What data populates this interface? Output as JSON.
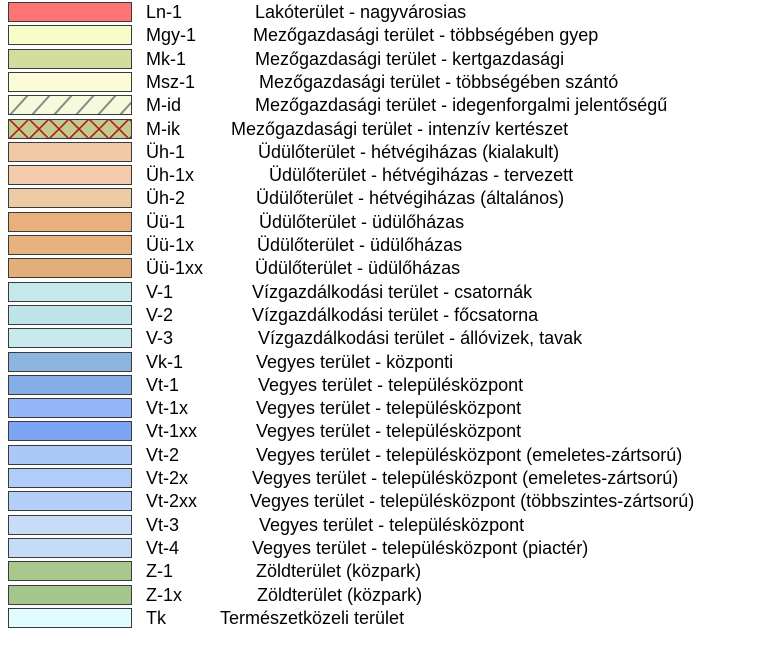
{
  "legend": {
    "rows": [
      {
        "code": "Ln-1",
        "label": "Lakóterület - nagyvárosias",
        "color": "#ff7373",
        "pattern": "none"
      },
      {
        "code": "Mgy-1",
        "label": "Mezőgazdasági terület - többségében gyep",
        "color": "#f8fcc8",
        "pattern": "none"
      },
      {
        "code": "Mk-1",
        "label": "Mezőgazdasági terület - kertgazdasági",
        "color": "#d2dda0",
        "pattern": "none"
      },
      {
        "code": "Msz-1",
        "label": "Mezőgazdasági terület - többségében szántó",
        "color": "#fbfbd8",
        "pattern": "none"
      },
      {
        "code": "M-id",
        "label": "Mezőgazdasági terület - idegenforgalmi jelentőségű",
        "color": "#f6fadc",
        "pattern": "diagonal"
      },
      {
        "code": "M-ik",
        "label": "Mezőgazdasági terület - intenzív kertészet",
        "color": "#c2cb8c",
        "pattern": "cross"
      },
      {
        "code": "Üh-1",
        "label": "Üdülőterület - hétvégiházas (kialakult)",
        "color": "#f0c8a4",
        "pattern": "none"
      },
      {
        "code": "Üh-1x",
        "label": "Üdülőterület - hétvégiházas - tervezett",
        "color": "#f2ccac",
        "pattern": "none"
      },
      {
        "code": "Üh-2",
        "label": "Üdülőterület - hétvégiházas (általános)",
        "color": "#eccaa4",
        "pattern": "none"
      },
      {
        "code": "Üü-1",
        "label": "Üdülőterület - üdülőházas",
        "color": "#e7b07c",
        "pattern": "none"
      },
      {
        "code": "Üü-1x",
        "label": "Üdülőterület - üdülőházas",
        "color": "#e8b27e",
        "pattern": "none"
      },
      {
        "code": "Üü-1xx",
        "label": "Üdülőterület - üdülőházas",
        "color": "#e4ae7a",
        "pattern": "none"
      },
      {
        "code": "V-1",
        "label": "Vízgazdálkodási terület - csatornák",
        "color": "#c4e8ec",
        "pattern": "none"
      },
      {
        "code": "V-2",
        "label": "Vízgazdálkodási terület - főcsatorna",
        "color": "#bde4e6",
        "pattern": "none"
      },
      {
        "code": "V-3",
        "label": "Vízgazdálkodási terület - állóvizek, tavak",
        "color": "#c8eaec",
        "pattern": "none"
      },
      {
        "code": "Vk-1",
        "label": "Vegyes terület - központi",
        "color": "#8cb4dc",
        "pattern": "none"
      },
      {
        "code": "Vt-1",
        "label": "Vegyes terület - településközpont",
        "color": "#84aee8",
        "pattern": "none"
      },
      {
        "code": "Vt-1x",
        "label": "Vegyes terület - településközpont",
        "color": "#94b6f8",
        "pattern": "none"
      },
      {
        "code": "Vt-1xx",
        "label": "Vegyes terület - településközpont",
        "color": "#7ca6f4",
        "pattern": "none"
      },
      {
        "code": "Vt-2",
        "label": "Vegyes terület - településközpont (emeletes-zártsorú)",
        "color": "#aac8f8",
        "pattern": "none"
      },
      {
        "code": "Vt-2x",
        "label": "Vegyes terület - településközpont (emeletes-zártsorú)",
        "color": "#b0ccf8",
        "pattern": "none"
      },
      {
        "code": "Vt-2xx",
        "label": "Vegyes terület - településközpont (többszintes-zártsorú)",
        "color": "#b4d0f8",
        "pattern": "none"
      },
      {
        "code": "Vt-3",
        "label": "Vegyes terület - településközpont",
        "color": "#c8dcf8",
        "pattern": "none"
      },
      {
        "code": "Vt-4",
        "label": "Vegyes terület - településközpont (piactér)",
        "color": "#c4dcf8",
        "pattern": "none"
      },
      {
        "code": "Z-1",
        "label": "Zöldterület (közpark)",
        "color": "#a8c88e",
        "pattern": "none"
      },
      {
        "code": "Z-1x",
        "label": "Zöldterület (közpark)",
        "color": "#a4c68c",
        "pattern": "none"
      },
      {
        "code": "Tk",
        "label": "Természetközeli terület",
        "color": "#e0fcfc",
        "pattern": "none"
      }
    ]
  }
}
